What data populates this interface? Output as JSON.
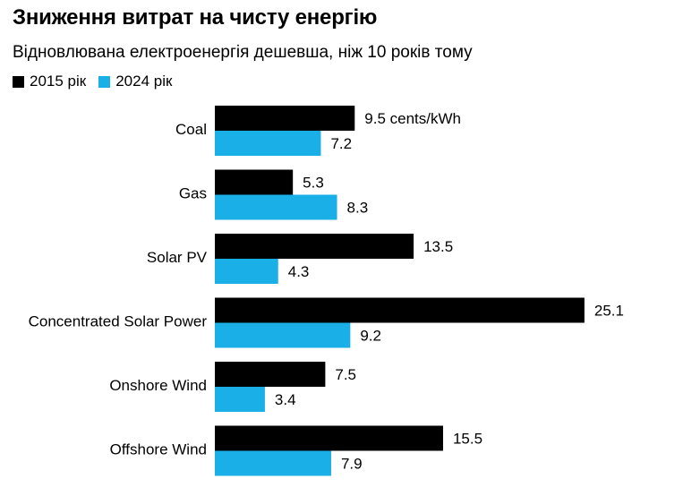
{
  "title": "Зниження витрат на чисту енергію",
  "subtitle": "Відновлювана електроенергія дешевша, ніж 10 років тому",
  "colors": {
    "s2015": "#000000",
    "s2024": "#1aafe6"
  },
  "chart_data": {
    "type": "bar",
    "orientation": "horizontal",
    "categories": [
      "Coal",
      "Gas",
      "Solar PV",
      "Concentrated Solar Power",
      "Onshore Wind",
      "Offshore Wind"
    ],
    "series": [
      {
        "name": "2015 рік",
        "values": [
          9.5,
          5.3,
          13.5,
          25.1,
          7.5,
          15.5
        ],
        "color": "#000000"
      },
      {
        "name": "2024 рік",
        "values": [
          7.2,
          8.3,
          4.3,
          9.2,
          3.4,
          7.9
        ],
        "color": "#1aafe6"
      }
    ],
    "first_label_unit": " cents/kWh",
    "legend_position": "top-left",
    "grid": false
  }
}
